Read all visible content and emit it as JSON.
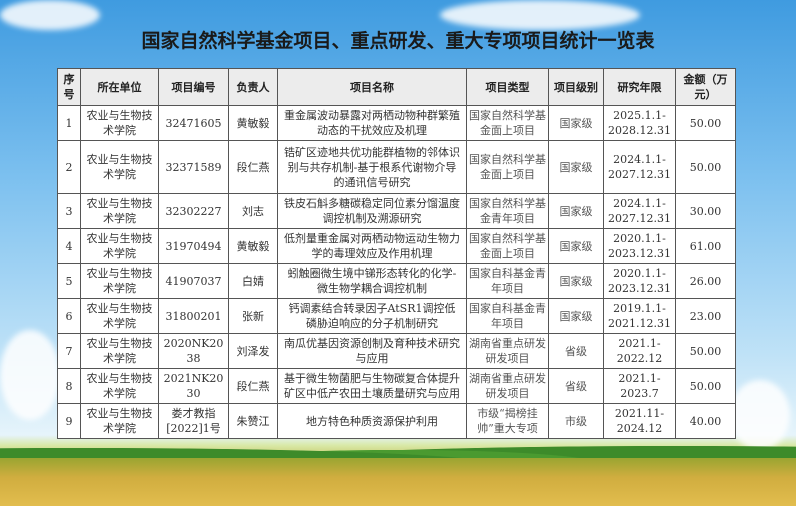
{
  "title": "国家自然科学基金项目、重点研发、重大专项项目统计一览表",
  "table": {
    "headers": [
      "序号",
      "所在单位",
      "项目编号",
      "负责人",
      "项目名称",
      "项目类型",
      "项目级别",
      "研究年限",
      "金额（万元）"
    ],
    "rows": [
      [
        "1",
        "农业与生物技术学院",
        "32471605",
        "黄敏毅",
        "重金属波动暴露对两栖动物种群繁殖动态的干扰效应及机理",
        "国家自然科学基金面上项目",
        "国家级",
        "2025.1.1-2028.12.31",
        "50.00"
      ],
      [
        "2",
        "农业与生物技术学院",
        "32371589",
        "段仁燕",
        "锆矿区迹地共优功能群植物的邻体识别与共存机制-基于根系代谢物介导的通讯信号研究",
        "国家自然科学基金面上项目",
        "国家级",
        "2024.1.1-2027.12.31",
        "50.00"
      ],
      [
        "3",
        "农业与生物技术学院",
        "32302227",
        "刘志",
        "铁皮石斛多糖碳稳定同位素分馏温度调控机制及溯源研究",
        "国家自然科学基金青年项目",
        "国家级",
        "2024.1.1-2027.12.31",
        "30.00"
      ],
      [
        "4",
        "农业与生物技术学院",
        "31970494",
        "黄敏毅",
        "低剂量重金属对两栖动物运动生物力学的毒理效应及作用机理",
        "国家自然科学基金面上项目",
        "国家级",
        "2020.1.1-2023.12.31",
        "61.00"
      ],
      [
        "5",
        "农业与生物技术学院",
        "41907037",
        "白婧",
        "蚓触圈微生境中锑形态转化的化学-微生物学耦合调控机制",
        "国家自科基金青年项目",
        "国家级",
        "2020.1.1-2023.12.31",
        "26.00"
      ],
      [
        "6",
        "农业与生物技术学院",
        "31800201",
        "张新",
        "钙调素结合转录因子AtSR1调控低磷胁迫响应的分子机制研究",
        "国家自科基金青年项目",
        "国家级",
        "2019.1.1-2021.12.31",
        "23.00"
      ],
      [
        "7",
        "农业与生物技术学院",
        "2020NK2038",
        "刘泽发",
        "南瓜优基因资源创制及育种技术研究与应用",
        "湖南省重点研发研发项目",
        "省级",
        "2021.1-2022.12",
        "50.00"
      ],
      [
        "8",
        "农业与生物技术学院",
        "2021NK2030",
        "段仁燕",
        "基于微生物菌肥与生物碳复合体提升矿区中低产农田土壤质量研究与应用",
        "湖南省重点研发研发项目",
        "省级",
        "2021.1-2023.7",
        "50.00"
      ],
      [
        "9",
        "农业与生物技术学院",
        "娄才教指[2022]1号",
        "朱赞江",
        "地方特色种质资源保护利用",
        "市级“揭榜挂帅”重大专项",
        "市级",
        "2021.11-2024.12",
        "40.00"
      ]
    ]
  }
}
